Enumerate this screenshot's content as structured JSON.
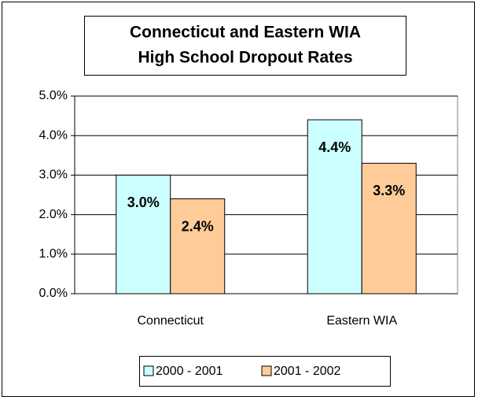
{
  "chart_data": {
    "type": "bar",
    "title": [
      "Connecticut and Eastern WIA",
      "High School Dropout Rates"
    ],
    "categories": [
      "Connecticut",
      "Eastern WIA"
    ],
    "series": [
      {
        "name": "2000 - 2001",
        "color": "#ccffff",
        "values": [
          3.0,
          4.4
        ],
        "value_labels": [
          "3.0%",
          "4.4%"
        ]
      },
      {
        "name": "2001 - 2002",
        "color": "#ffcc99",
        "values": [
          2.4,
          3.3
        ],
        "value_labels": [
          "2.4%",
          "3.3%"
        ]
      }
    ],
    "ylim": [
      0,
      5
    ],
    "yticks": [
      {
        "value": 0,
        "label": "0.0%"
      },
      {
        "value": 1,
        "label": "1.0%"
      },
      {
        "value": 2,
        "label": "2.0%"
      },
      {
        "value": 3,
        "label": "3.0%"
      },
      {
        "value": 4,
        "label": "4.0%"
      },
      {
        "value": 5,
        "label": "5.0%"
      }
    ],
    "grid": true,
    "legend": "bottom"
  }
}
